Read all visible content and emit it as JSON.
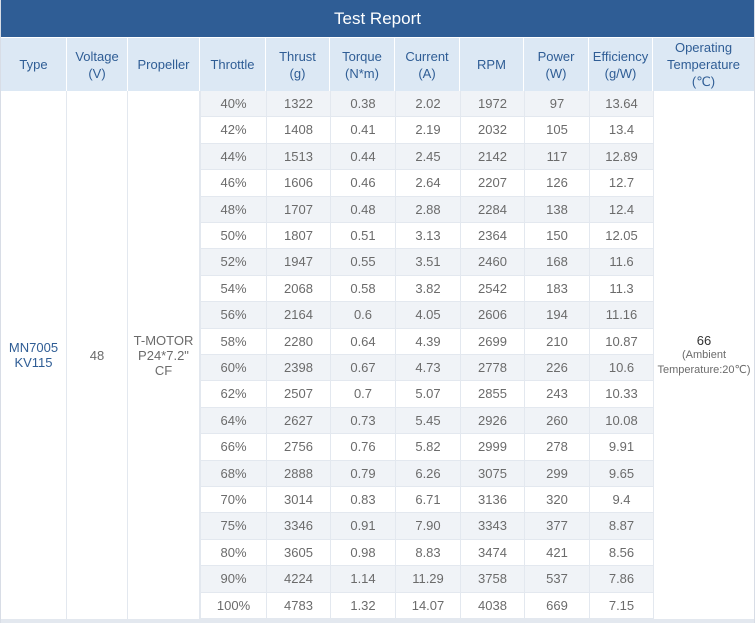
{
  "title": "Test Report",
  "headers": {
    "type": "Type",
    "voltage": "Voltage",
    "voltage_unit": "(V)",
    "propeller": "Propeller",
    "throttle": "Throttle",
    "thrust": "Thrust",
    "thrust_unit": "(g)",
    "torque": "Torque",
    "torque_unit": "(N*m)",
    "current": "Current",
    "current_unit": "(A)",
    "rpm": "RPM",
    "power": "Power",
    "power_unit": "(W)",
    "efficiency": "Efficiency",
    "efficiency_unit": "(g/W)",
    "temp": "Operating",
    "temp2": "Temperature",
    "temp_unit": "(℃)"
  },
  "merged": {
    "type_line1": "MN7005",
    "type_line2": "KV115",
    "voltage": "48",
    "propeller_line1": "T-MOTOR",
    "propeller_line2": "P24*7.2\" CF",
    "temp_value": "66",
    "temp_note1": "(Ambient",
    "temp_note2": "Temperature:20℃)"
  },
  "rows": [
    {
      "throttle": "40%",
      "thrust": "1322",
      "torque": "0.38",
      "current": "2.02",
      "rpm": "1972",
      "power": "97",
      "efficiency": "13.64"
    },
    {
      "throttle": "42%",
      "thrust": "1408",
      "torque": "0.41",
      "current": "2.19",
      "rpm": "2032",
      "power": "105",
      "efficiency": "13.4"
    },
    {
      "throttle": "44%",
      "thrust": "1513",
      "torque": "0.44",
      "current": "2.45",
      "rpm": "2142",
      "power": "117",
      "efficiency": "12.89"
    },
    {
      "throttle": "46%",
      "thrust": "1606",
      "torque": "0.46",
      "current": "2.64",
      "rpm": "2207",
      "power": "126",
      "efficiency": "12.7"
    },
    {
      "throttle": "48%",
      "thrust": "1707",
      "torque": "0.48",
      "current": "2.88",
      "rpm": "2284",
      "power": "138",
      "efficiency": "12.4"
    },
    {
      "throttle": "50%",
      "thrust": "1807",
      "torque": "0.51",
      "current": "3.13",
      "rpm": "2364",
      "power": "150",
      "efficiency": "12.05"
    },
    {
      "throttle": "52%",
      "thrust": "1947",
      "torque": "0.55",
      "current": "3.51",
      "rpm": "2460",
      "power": "168",
      "efficiency": "11.6"
    },
    {
      "throttle": "54%",
      "thrust": "2068",
      "torque": "0.58",
      "current": "3.82",
      "rpm": "2542",
      "power": "183",
      "efficiency": "11.3"
    },
    {
      "throttle": "56%",
      "thrust": "2164",
      "torque": "0.6",
      "current": "4.05",
      "rpm": "2606",
      "power": "194",
      "efficiency": "11.16"
    },
    {
      "throttle": "58%",
      "thrust": "2280",
      "torque": "0.64",
      "current": "4.39",
      "rpm": "2699",
      "power": "210",
      "efficiency": "10.87"
    },
    {
      "throttle": "60%",
      "thrust": "2398",
      "torque": "0.67",
      "current": "4.73",
      "rpm": "2778",
      "power": "226",
      "efficiency": "10.6"
    },
    {
      "throttle": "62%",
      "thrust": "2507",
      "torque": "0.7",
      "current": "5.07",
      "rpm": "2855",
      "power": "243",
      "efficiency": "10.33"
    },
    {
      "throttle": "64%",
      "thrust": "2627",
      "torque": "0.73",
      "current": "5.45",
      "rpm": "2926",
      "power": "260",
      "efficiency": "10.08"
    },
    {
      "throttle": "66%",
      "thrust": "2756",
      "torque": "0.76",
      "current": "5.82",
      "rpm": "2999",
      "power": "278",
      "efficiency": "9.91"
    },
    {
      "throttle": "68%",
      "thrust": "2888",
      "torque": "0.79",
      "current": "6.26",
      "rpm": "3075",
      "power": "299",
      "efficiency": "9.65"
    },
    {
      "throttle": "70%",
      "thrust": "3014",
      "torque": "0.83",
      "current": "6.71",
      "rpm": "3136",
      "power": "320",
      "efficiency": "9.4"
    },
    {
      "throttle": "75%",
      "thrust": "3346",
      "torque": "0.91",
      "current": "7.90",
      "rpm": "3343",
      "power": "377",
      "efficiency": "8.87"
    },
    {
      "throttle": "80%",
      "thrust": "3605",
      "torque": "0.98",
      "current": "8.83",
      "rpm": "3474",
      "power": "421",
      "efficiency": "8.56"
    },
    {
      "throttle": "90%",
      "thrust": "4224",
      "torque": "1.14",
      "current": "11.29",
      "rpm": "3758",
      "power": "537",
      "efficiency": "7.86"
    },
    {
      "throttle": "100%",
      "thrust": "4783",
      "torque": "1.32",
      "current": "14.07",
      "rpm": "4038",
      "power": "669",
      "efficiency": "7.15"
    }
  ]
}
